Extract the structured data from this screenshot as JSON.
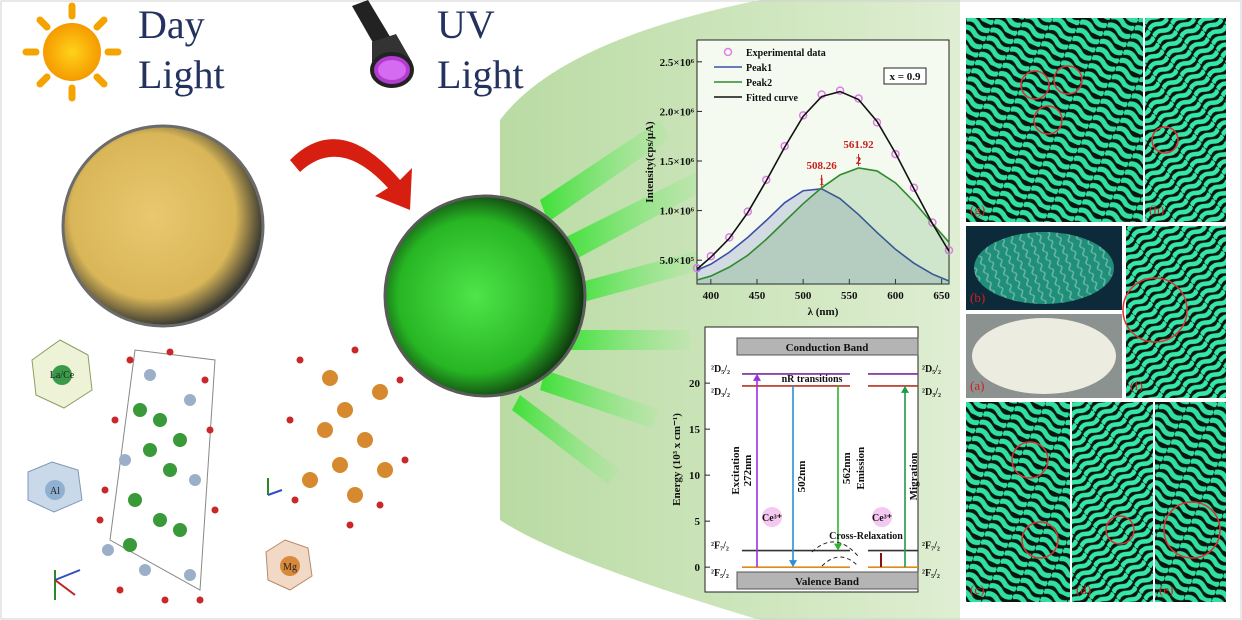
{
  "header": {
    "day_light": [
      "Day",
      "Light"
    ],
    "uv_light": [
      "UV",
      "Light"
    ]
  },
  "structure_labels": [
    "La/Ce",
    "Al",
    "Mg"
  ],
  "chart_data": [
    {
      "type": "line",
      "ylabel": "Intensity(cps/μA)",
      "xlabel": "λ (nm)",
      "annotation": "x = 0.9",
      "xlim": [
        385,
        658
      ],
      "xticks": [
        400,
        450,
        500,
        550,
        600,
        650
      ],
      "ylim": [
        260000,
        2720000
      ],
      "yticks": [
        {
          "value": 500000,
          "label": "5.0×10⁵"
        },
        {
          "value": 1000000,
          "label": "1.0×10⁶"
        },
        {
          "value": 1500000,
          "label": "1.5×10⁶"
        },
        {
          "value": 2000000,
          "label": "2.0×10⁶"
        },
        {
          "value": 2500000,
          "label": "2.5×10⁶"
        }
      ],
      "x": [
        385,
        400,
        420,
        440,
        460,
        480,
        500,
        520,
        540,
        560,
        580,
        600,
        620,
        640,
        658
      ],
      "series": [
        {
          "name": "Experimental data",
          "color": "#e07be8",
          "mode": "markers",
          "values": [
            420000,
            540000,
            730000,
            990000,
            1310000,
            1650000,
            1960000,
            2170000,
            2210000,
            2130000,
            1890000,
            1570000,
            1230000,
            880000,
            600000
          ]
        },
        {
          "name": "Peak1",
          "color": "#3b4fa8",
          "mode": "area",
          "peak_label": "508.26",
          "peak_number": "1",
          "values": [
            400000,
            460000,
            580000,
            730000,
            900000,
            1080000,
            1200000,
            1220000,
            1120000,
            960000,
            780000,
            610000,
            470000,
            360000,
            290000
          ]
        },
        {
          "name": "Peak2",
          "color": "#2e8b2e",
          "mode": "area",
          "peak_label": "561.92",
          "peak_number": "2",
          "values": [
            300000,
            340000,
            430000,
            550000,
            710000,
            890000,
            1070000,
            1230000,
            1360000,
            1430000,
            1400000,
            1280000,
            1090000,
            870000,
            680000
          ]
        },
        {
          "name": "Fitted curve",
          "color": "#111111",
          "mode": "line",
          "values": [
            410000,
            530000,
            720000,
            980000,
            1300000,
            1640000,
            1950000,
            2150000,
            2200000,
            2120000,
            1900000,
            1580000,
            1220000,
            870000,
            590000
          ]
        }
      ]
    },
    {
      "type": "level-diagram",
      "ylabel": "Energy (10³ x cm⁻¹)",
      "ylim": [
        -2.7,
        26.1
      ],
      "yticks": [
        0,
        5,
        10,
        15,
        20
      ],
      "bands": [
        "Conduction Band",
        "Valence Band"
      ],
      "levels": [
        {
          "label": "²D₅/₂",
          "value": 21,
          "color": "#7b2a9a"
        },
        {
          "label": "²D₃/₂",
          "value": 19.7,
          "color": "#b8321e"
        },
        {
          "label": "²F₇/₂",
          "value": 1.8,
          "color": "#333333"
        },
        {
          "label": "²F₅/₂",
          "value": 0,
          "color": "#e08a1e"
        }
      ],
      "transitions": [
        {
          "labels": [
            "Excitation",
            "272nm"
          ],
          "from": 0,
          "to": 21,
          "color": "#9b30e0"
        },
        {
          "labels": [
            "502nm"
          ],
          "from": 19.7,
          "to": 0,
          "color": "#2a8fd8"
        },
        {
          "labels": [
            "562nm",
            "Emission"
          ],
          "from": 19.7,
          "to": 1.8,
          "color": "#2cb52c"
        },
        {
          "labels": [
            "Migration"
          ],
          "from": 0,
          "to": 19.7,
          "color": "#1f9a4a"
        }
      ],
      "annotations": [
        "nR transitions",
        "Ce³⁺",
        "Ce³⁺",
        "Cross-Relaxation"
      ]
    }
  ],
  "fingerprint_panels": [
    "(g)",
    "(h)",
    "(b)",
    "(f)",
    "(a)",
    "(c)",
    "(d)",
    "(e)"
  ]
}
